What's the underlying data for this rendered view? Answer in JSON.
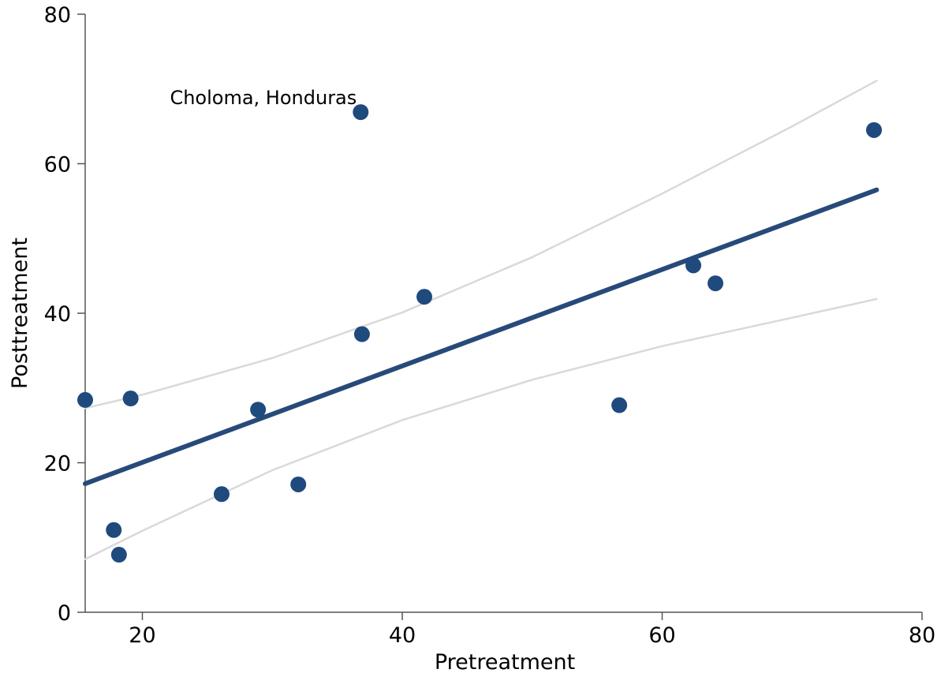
{
  "chart_data": {
    "type": "scatter",
    "x_label": "Pretreatment",
    "y_label": "Posttreatment",
    "xlim": [
      15.6,
      80
    ],
    "xticks": [
      20,
      40,
      60,
      80
    ],
    "ylim": [
      0,
      80
    ],
    "yticks": [
      0,
      20,
      40,
      60,
      80
    ],
    "grid": false,
    "points": {
      "color": "#1f4a7e",
      "x": [
        15.6,
        19.1,
        17.8,
        18.2,
        26.1,
        28.9,
        32.0,
        36.8,
        36.9,
        41.7,
        56.7,
        62.4,
        64.1,
        76.3
      ],
      "values": [
        28.4,
        28.6,
        11.0,
        7.7,
        15.8,
        27.1,
        17.1,
        66.9,
        37.2,
        42.2,
        27.7,
        46.4,
        44.0,
        64.5
      ]
    },
    "annotation": {
      "text": "Choloma, Honduras",
      "point": 7
    },
    "fit": {
      "color": "#274a7a",
      "x": [
        15.6,
        76.5
      ],
      "values": [
        17.2,
        56.5
      ]
    },
    "upper_band": {
      "color": "#d9d9d9",
      "x": [
        15.6,
        20,
        30,
        40,
        50,
        60,
        70,
        76.5
      ],
      "values": [
        27.3,
        29.1,
        34.0,
        40.1,
        47.5,
        56.0,
        65.0,
        71.1
      ]
    },
    "lower_band": {
      "color": "#d9d9d9",
      "x": [
        15.6,
        20,
        30,
        40,
        50,
        60,
        70,
        76.5
      ],
      "values": [
        7.1,
        10.9,
        19.0,
        25.7,
        31.1,
        35.6,
        39.4,
        41.9
      ]
    }
  }
}
